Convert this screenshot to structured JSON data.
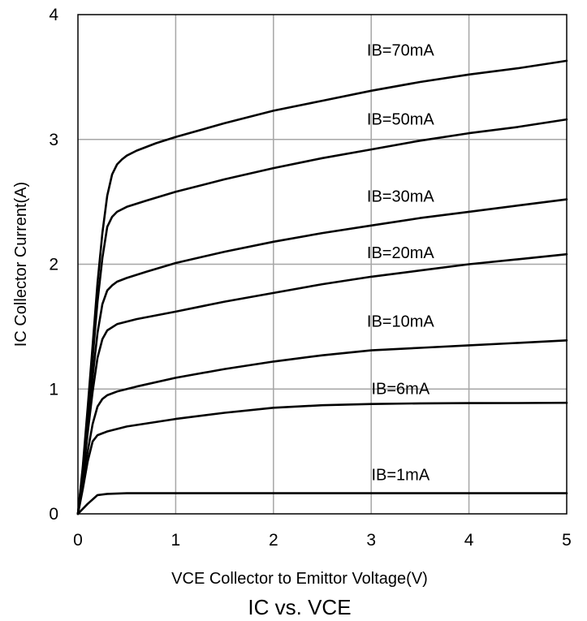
{
  "chart_data": {
    "type": "line",
    "title": "IC vs. VCE",
    "xlabel": "VCE Collector to Emittor Voltage(V)",
    "ylabel": "IC Collector Current(A)",
    "xlim": [
      0,
      5
    ],
    "ylim": [
      0,
      4
    ],
    "x_ticks": [
      0,
      1,
      2,
      3,
      4,
      5
    ],
    "y_ticks": [
      0,
      1,
      2,
      3,
      4
    ],
    "grid": true,
    "legend": "none (labels placed on curves)",
    "line_color": "#000000",
    "grid_color": "#a6a6a6",
    "series": [
      {
        "name": "IB=1mA",
        "x": [
          0,
          0.1,
          0.2,
          0.3,
          0.5,
          1,
          2,
          3,
          4,
          5
        ],
        "y": [
          0,
          0.08,
          0.15,
          0.16,
          0.165,
          0.165,
          0.165,
          0.165,
          0.165,
          0.165
        ]
      },
      {
        "name": "IB=6mA",
        "x": [
          0,
          0.05,
          0.1,
          0.15,
          0.2,
          0.3,
          0.5,
          1,
          1.5,
          2,
          2.5,
          3,
          3.5,
          4,
          4.5,
          5
        ],
        "y": [
          0,
          0.2,
          0.42,
          0.58,
          0.63,
          0.66,
          0.7,
          0.76,
          0.81,
          0.85,
          0.87,
          0.88,
          0.885,
          0.887,
          0.888,
          0.89
        ]
      },
      {
        "name": "IB=10mA",
        "x": [
          0,
          0.05,
          0.1,
          0.15,
          0.2,
          0.25,
          0.3,
          0.4,
          0.6,
          1,
          1.5,
          2,
          2.5,
          3,
          3.5,
          4,
          4.5,
          5
        ],
        "y": [
          0,
          0.24,
          0.5,
          0.72,
          0.86,
          0.92,
          0.95,
          0.98,
          1.02,
          1.09,
          1.16,
          1.22,
          1.27,
          1.31,
          1.33,
          1.35,
          1.37,
          1.39
        ]
      },
      {
        "name": "IB=20mA",
        "x": [
          0,
          0.05,
          0.1,
          0.15,
          0.2,
          0.25,
          0.3,
          0.4,
          0.6,
          1,
          1.5,
          2,
          2.5,
          3,
          3.5,
          4,
          4.5,
          5
        ],
        "y": [
          0,
          0.3,
          0.65,
          0.98,
          1.25,
          1.4,
          1.47,
          1.52,
          1.56,
          1.62,
          1.7,
          1.77,
          1.84,
          1.9,
          1.95,
          2.0,
          2.04,
          2.08
        ]
      },
      {
        "name": "IB=30mA",
        "x": [
          0,
          0.05,
          0.1,
          0.15,
          0.2,
          0.25,
          0.3,
          0.35,
          0.4,
          0.5,
          0.7,
          1,
          1.5,
          2,
          2.5,
          3,
          3.5,
          4,
          4.5,
          5
        ],
        "y": [
          0,
          0.33,
          0.72,
          1.1,
          1.45,
          1.68,
          1.79,
          1.83,
          1.86,
          1.89,
          1.94,
          2.01,
          2.1,
          2.18,
          2.25,
          2.31,
          2.37,
          2.42,
          2.47,
          2.52
        ]
      },
      {
        "name": "IB=50mA",
        "x": [
          0,
          0.05,
          0.1,
          0.15,
          0.2,
          0.25,
          0.3,
          0.35,
          0.4,
          0.5,
          0.7,
          1,
          1.5,
          2,
          2.5,
          3,
          3.5,
          4,
          4.5,
          5
        ],
        "y": [
          0,
          0.36,
          0.8,
          1.25,
          1.7,
          2.05,
          2.3,
          2.38,
          2.42,
          2.46,
          2.51,
          2.58,
          2.68,
          2.77,
          2.85,
          2.92,
          2.99,
          3.05,
          3.1,
          3.16
        ]
      },
      {
        "name": "IB=70mA",
        "x": [
          0,
          0.05,
          0.1,
          0.15,
          0.2,
          0.25,
          0.3,
          0.35,
          0.4,
          0.45,
          0.5,
          0.6,
          0.8,
          1,
          1.5,
          2,
          2.5,
          3,
          3.5,
          4,
          4.5,
          5
        ],
        "y": [
          0,
          0.38,
          0.85,
          1.35,
          1.85,
          2.25,
          2.55,
          2.72,
          2.8,
          2.84,
          2.87,
          2.91,
          2.97,
          3.02,
          3.13,
          3.23,
          3.31,
          3.39,
          3.46,
          3.52,
          3.57,
          3.63
        ]
      }
    ],
    "curve_labels": [
      {
        "text": "IB=70mA",
        "x": 3.3,
        "y": 3.67
      },
      {
        "text": "IB=50mA",
        "x": 3.3,
        "y": 3.12
      },
      {
        "text": "IB=30mA",
        "x": 3.3,
        "y": 2.5
      },
      {
        "text": "IB=20mA",
        "x": 3.3,
        "y": 2.05
      },
      {
        "text": "IB=10mA",
        "x": 3.3,
        "y": 1.5
      },
      {
        "text": "IB=6mA",
        "x": 3.3,
        "y": 0.96
      },
      {
        "text": "IB=1mA",
        "x": 3.3,
        "y": 0.27
      }
    ]
  }
}
